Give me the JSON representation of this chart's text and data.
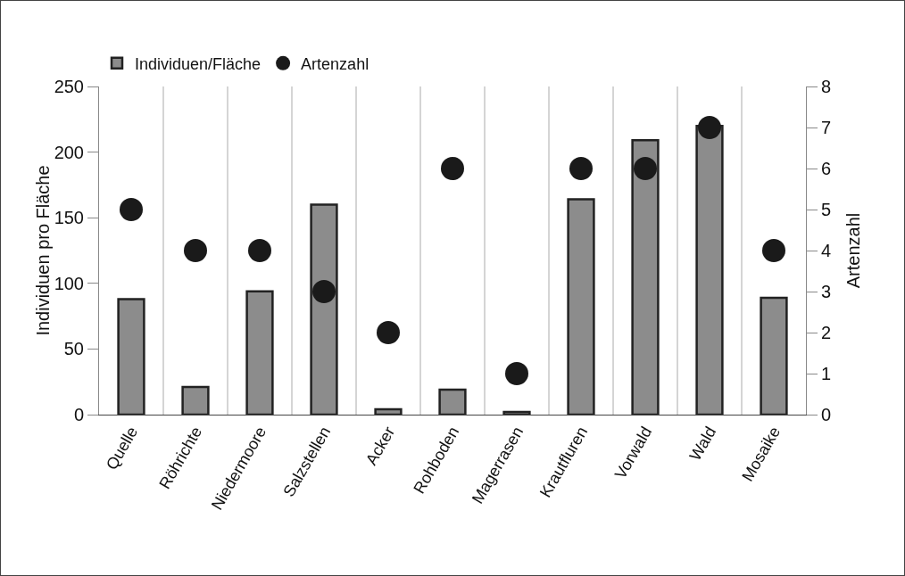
{
  "chart_data": {
    "type": "bar",
    "categories": [
      "Quelle",
      "Röhrichte",
      "Niedermoore",
      "Salzstellen",
      "Acker",
      "Rohboden",
      "Magerrasen",
      "Krautfluren",
      "Vorwald",
      "Wald",
      "Mosaike"
    ],
    "series": [
      {
        "name": "Individuen/Fläche",
        "color": "#8c8c8c",
        "values": [
          88,
          21,
          94,
          160,
          4,
          19,
          2,
          164,
          209,
          220,
          89
        ]
      },
      {
        "name": "Artenzahl",
        "type": "scatter",
        "axis": "y2",
        "color": "#1a1a1a",
        "values": [
          5,
          4,
          4,
          3,
          2,
          6,
          1,
          6,
          6,
          7,
          4
        ]
      }
    ],
    "ylabel": "Individuen pro Fläche",
    "y2label": "Artenzahl",
    "ylim": [
      0,
      250
    ],
    "yticks": [
      0,
      50,
      100,
      150,
      200,
      250
    ],
    "y2lim": [
      0,
      8
    ],
    "y2ticks": [
      0,
      1,
      2,
      3,
      4,
      5,
      6,
      7,
      8
    ],
    "grid": "x",
    "legend": "top left",
    "marker": "circle"
  }
}
